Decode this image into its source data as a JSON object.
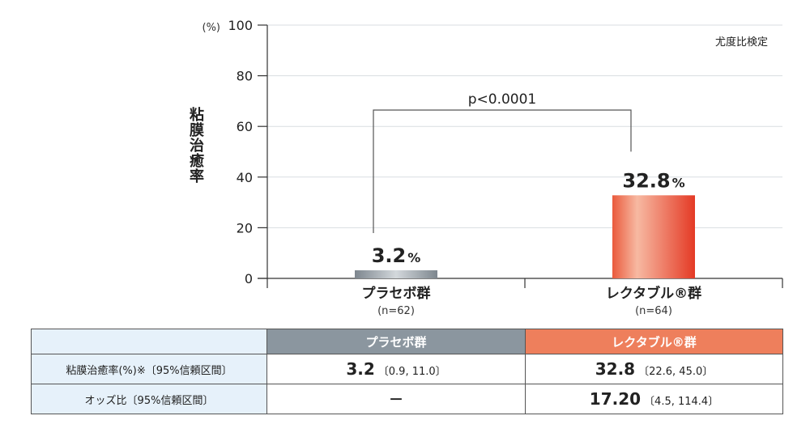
{
  "chart_data": {
    "type": "bar",
    "categories": [
      "プラセボ群",
      "レクタブル®群"
    ],
    "n_labels": [
      "(n=62)",
      "(n=64)"
    ],
    "values": [
      3.2,
      32.8
    ],
    "value_labels": [
      "3.2",
      "32.8"
    ],
    "value_unit": "%",
    "ylabel": "粘膜治癒率",
    "y_unit_label": "(%)",
    "ylim": [
      0,
      100
    ],
    "yticks": [
      0,
      20,
      40,
      60,
      80,
      100
    ],
    "test_label": "尤度比検定",
    "significance_label": "p<0.0001",
    "grid": true,
    "colors": {
      "placebo": "#9aa3ab",
      "rektabul": "#e8503a"
    }
  },
  "table": {
    "headers": [
      "",
      "プラセボ群",
      "レクタブル®群"
    ],
    "rows": [
      {
        "label": "粘膜治癒率(%)※〔95%信頼区間〕",
        "placebo_main": "3.2",
        "placebo_ci": "〔0.9, 11.0〕",
        "rektabul_main": "32.8",
        "rektabul_ci": "〔22.6, 45.0〕"
      },
      {
        "label": "オッズ比〔95%信頼区間〕",
        "placebo_main": "－",
        "placebo_ci": "",
        "rektabul_main": "17.20",
        "rektabul_ci": "〔4.5, 114.4〕"
      }
    ]
  }
}
